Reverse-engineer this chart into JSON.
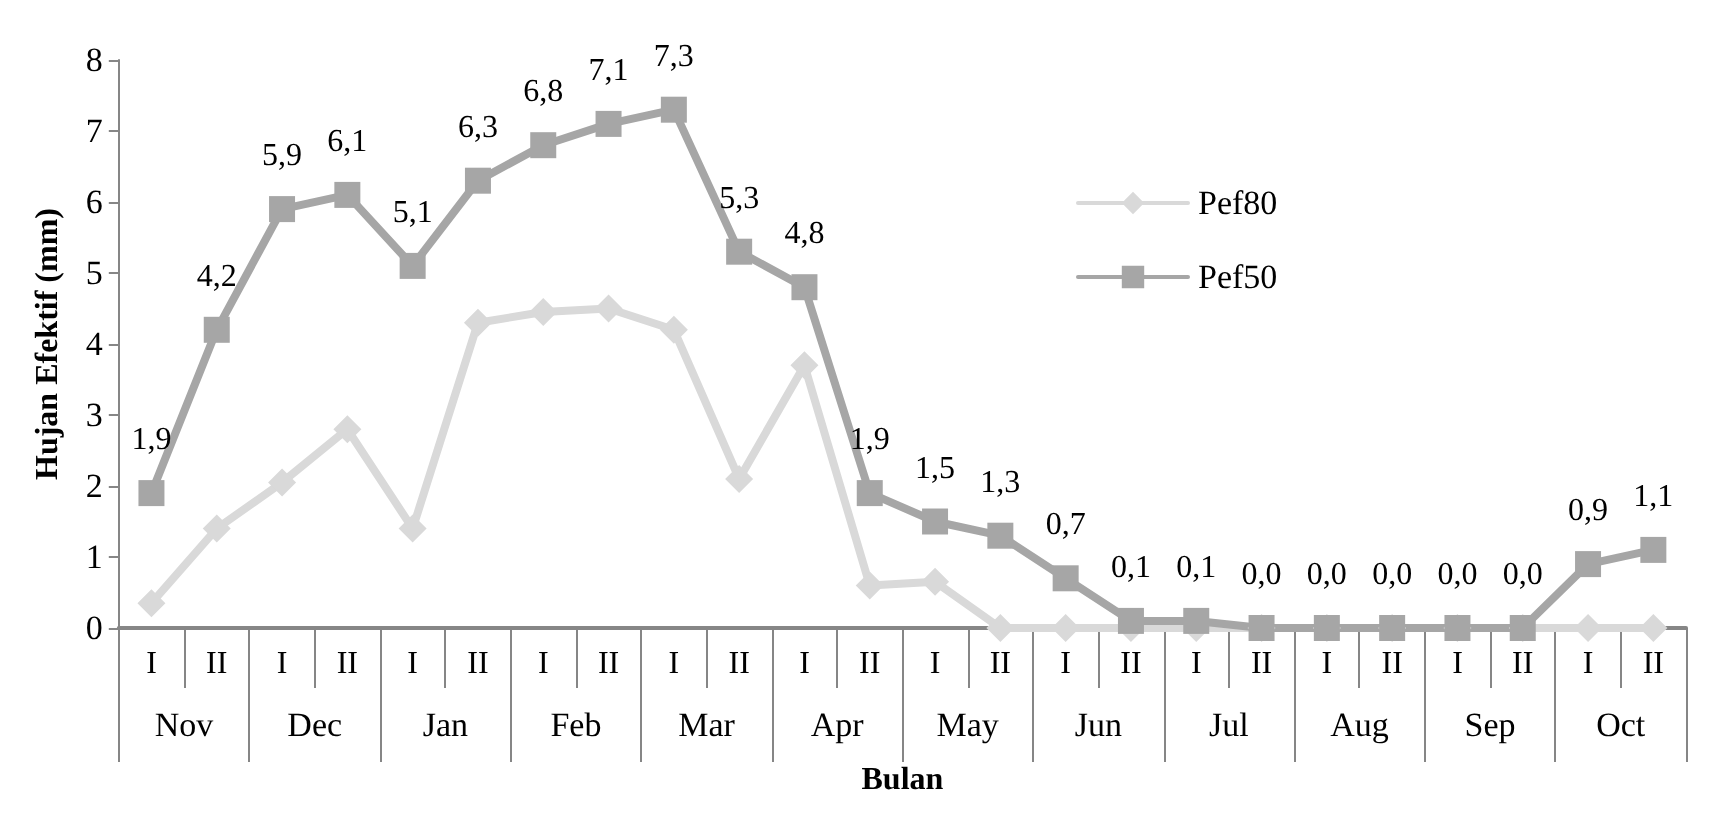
{
  "chart_data": {
    "type": "line",
    "xlabel": "Bulan",
    "ylabel": "Hujan Efektif (mm)",
    "categories": [
      "I",
      "II",
      "I",
      "II",
      "I",
      "II",
      "I",
      "II",
      "I",
      "II",
      "I",
      "II",
      "I",
      "II",
      "I",
      "II",
      "I",
      "II",
      "I",
      "II",
      "I",
      "II",
      "I",
      "II"
    ],
    "annotations": [
      "Nov",
      "Dec",
      "Jan",
      "Feb",
      "Mar",
      "Apr",
      "May",
      "Jun",
      "Jul",
      "Aug",
      "Sep",
      "Oct"
    ],
    "series": [
      {
        "name": "Pef80",
        "color": "#d9d9d9",
        "marker": "diamond",
        "values": [
          0.35,
          1.4,
          2.05,
          2.8,
          1.4,
          4.3,
          4.45,
          4.5,
          4.2,
          2.1,
          3.7,
          0.6,
          0.65,
          0,
          0,
          0,
          0,
          0,
          0,
          0,
          0,
          0,
          0,
          0
        ]
      },
      {
        "name": "Pef50",
        "color": "#a6a6a6",
        "marker": "square",
        "values": [
          1.9,
          4.2,
          5.9,
          6.1,
          5.1,
          6.3,
          6.8,
          7.1,
          7.3,
          5.3,
          4.8,
          1.9,
          1.5,
          1.3,
          0.7,
          0.1,
          0.1,
          0,
          0,
          0,
          0,
          0,
          0.9,
          1.1
        ],
        "value_labels": [
          "1,9",
          "4,2",
          "5,9",
          "6,1",
          "5,1",
          "6,3",
          "6,8",
          "7,1",
          "7,3",
          "5,3",
          "4,8",
          "1,9",
          "1,5",
          "1,3",
          "0,7",
          "0,1",
          "0,1",
          "0,0",
          "0,0",
          "0,0",
          "0,0",
          "0,0",
          "0,9",
          "1,1"
        ]
      }
    ],
    "ylim": [
      0,
      8
    ],
    "yticks": [
      0,
      1,
      2,
      3,
      4,
      5,
      6,
      7,
      8
    ],
    "grid": false,
    "legend": "right",
    "line_style": "solid"
  }
}
